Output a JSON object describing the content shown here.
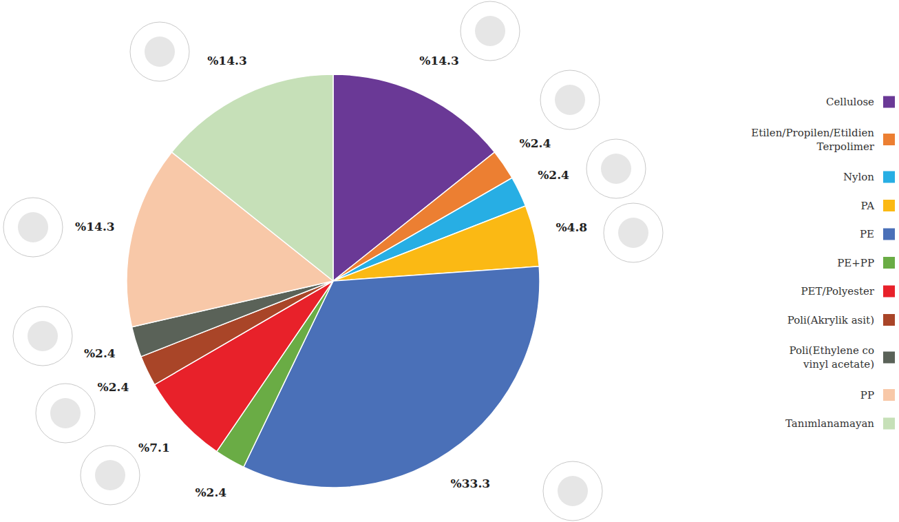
{
  "chart_data": {
    "type": "pie",
    "categories": [
      "Cellulose",
      "Etilen/Propilen/Etildien Terpolimer",
      "Nylon",
      "PA",
      "PE",
      "PE+PP",
      "PET/Polyester",
      "Poli(Akrylik asit)",
      "Poli(Ethylene co vinyl acetate)",
      "PP",
      "Tanımlanamayan"
    ],
    "values": [
      14.3,
      2.4,
      2.4,
      4.8,
      33.3,
      2.4,
      7.1,
      2.4,
      2.4,
      14.3,
      14.3
    ],
    "value_labels": [
      "%14.3",
      "%2.4",
      "%2.4",
      "%4.8",
      "%33.3",
      "%2.4",
      "%7.1",
      "%2.4",
      "%2.4",
      "%14.3",
      "%14.3"
    ],
    "colors": [
      "#6a3996",
      "#ec7f32",
      "#27aee4",
      "#fbb914",
      "#4a70b8",
      "#6aac45",
      "#e8212a",
      "#a94528",
      "#5a6258",
      "#f8c8a8",
      "#c6e0b8"
    ],
    "data_labels": true,
    "legend": "right"
  }
}
